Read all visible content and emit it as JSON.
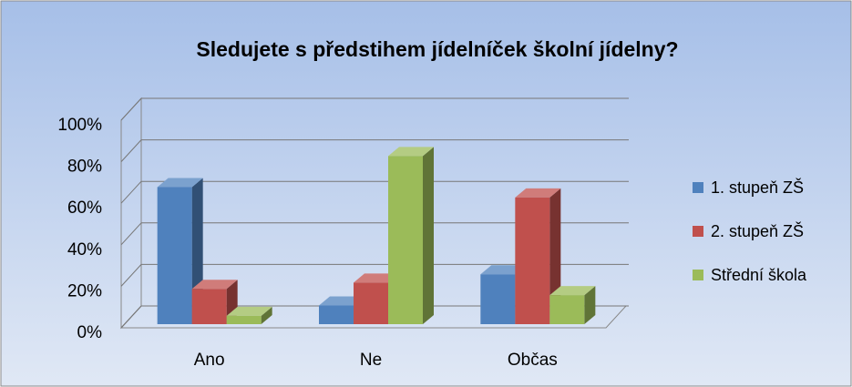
{
  "chart_data": {
    "type": "bar",
    "title": "Sledujete s předstihem jídelníček školní jídelny?",
    "categories": [
      "Ano",
      "Ne",
      "Občas"
    ],
    "series": [
      {
        "name": "1. stupeň ZŠ",
        "color": "#4f81bd",
        "values": [
          66,
          9,
          24
        ]
      },
      {
        "name": "2. stupeň ZŠ",
        "color": "#c0504d",
        "values": [
          17,
          20,
          61
        ]
      },
      {
        "name": "Střední škola",
        "color": "#9bbb59",
        "values": [
          4,
          81,
          14
        ]
      }
    ],
    "ylim": [
      0,
      100
    ],
    "yticks": [
      {
        "value": 0,
        "label": "0%"
      },
      {
        "value": 20,
        "label": "20%"
      },
      {
        "value": 40,
        "label": "40%"
      },
      {
        "value": 60,
        "label": "60%"
      },
      {
        "value": 80,
        "label": "80%"
      },
      {
        "value": 100,
        "label": "100%"
      }
    ],
    "grid": true,
    "legend": "right"
  }
}
